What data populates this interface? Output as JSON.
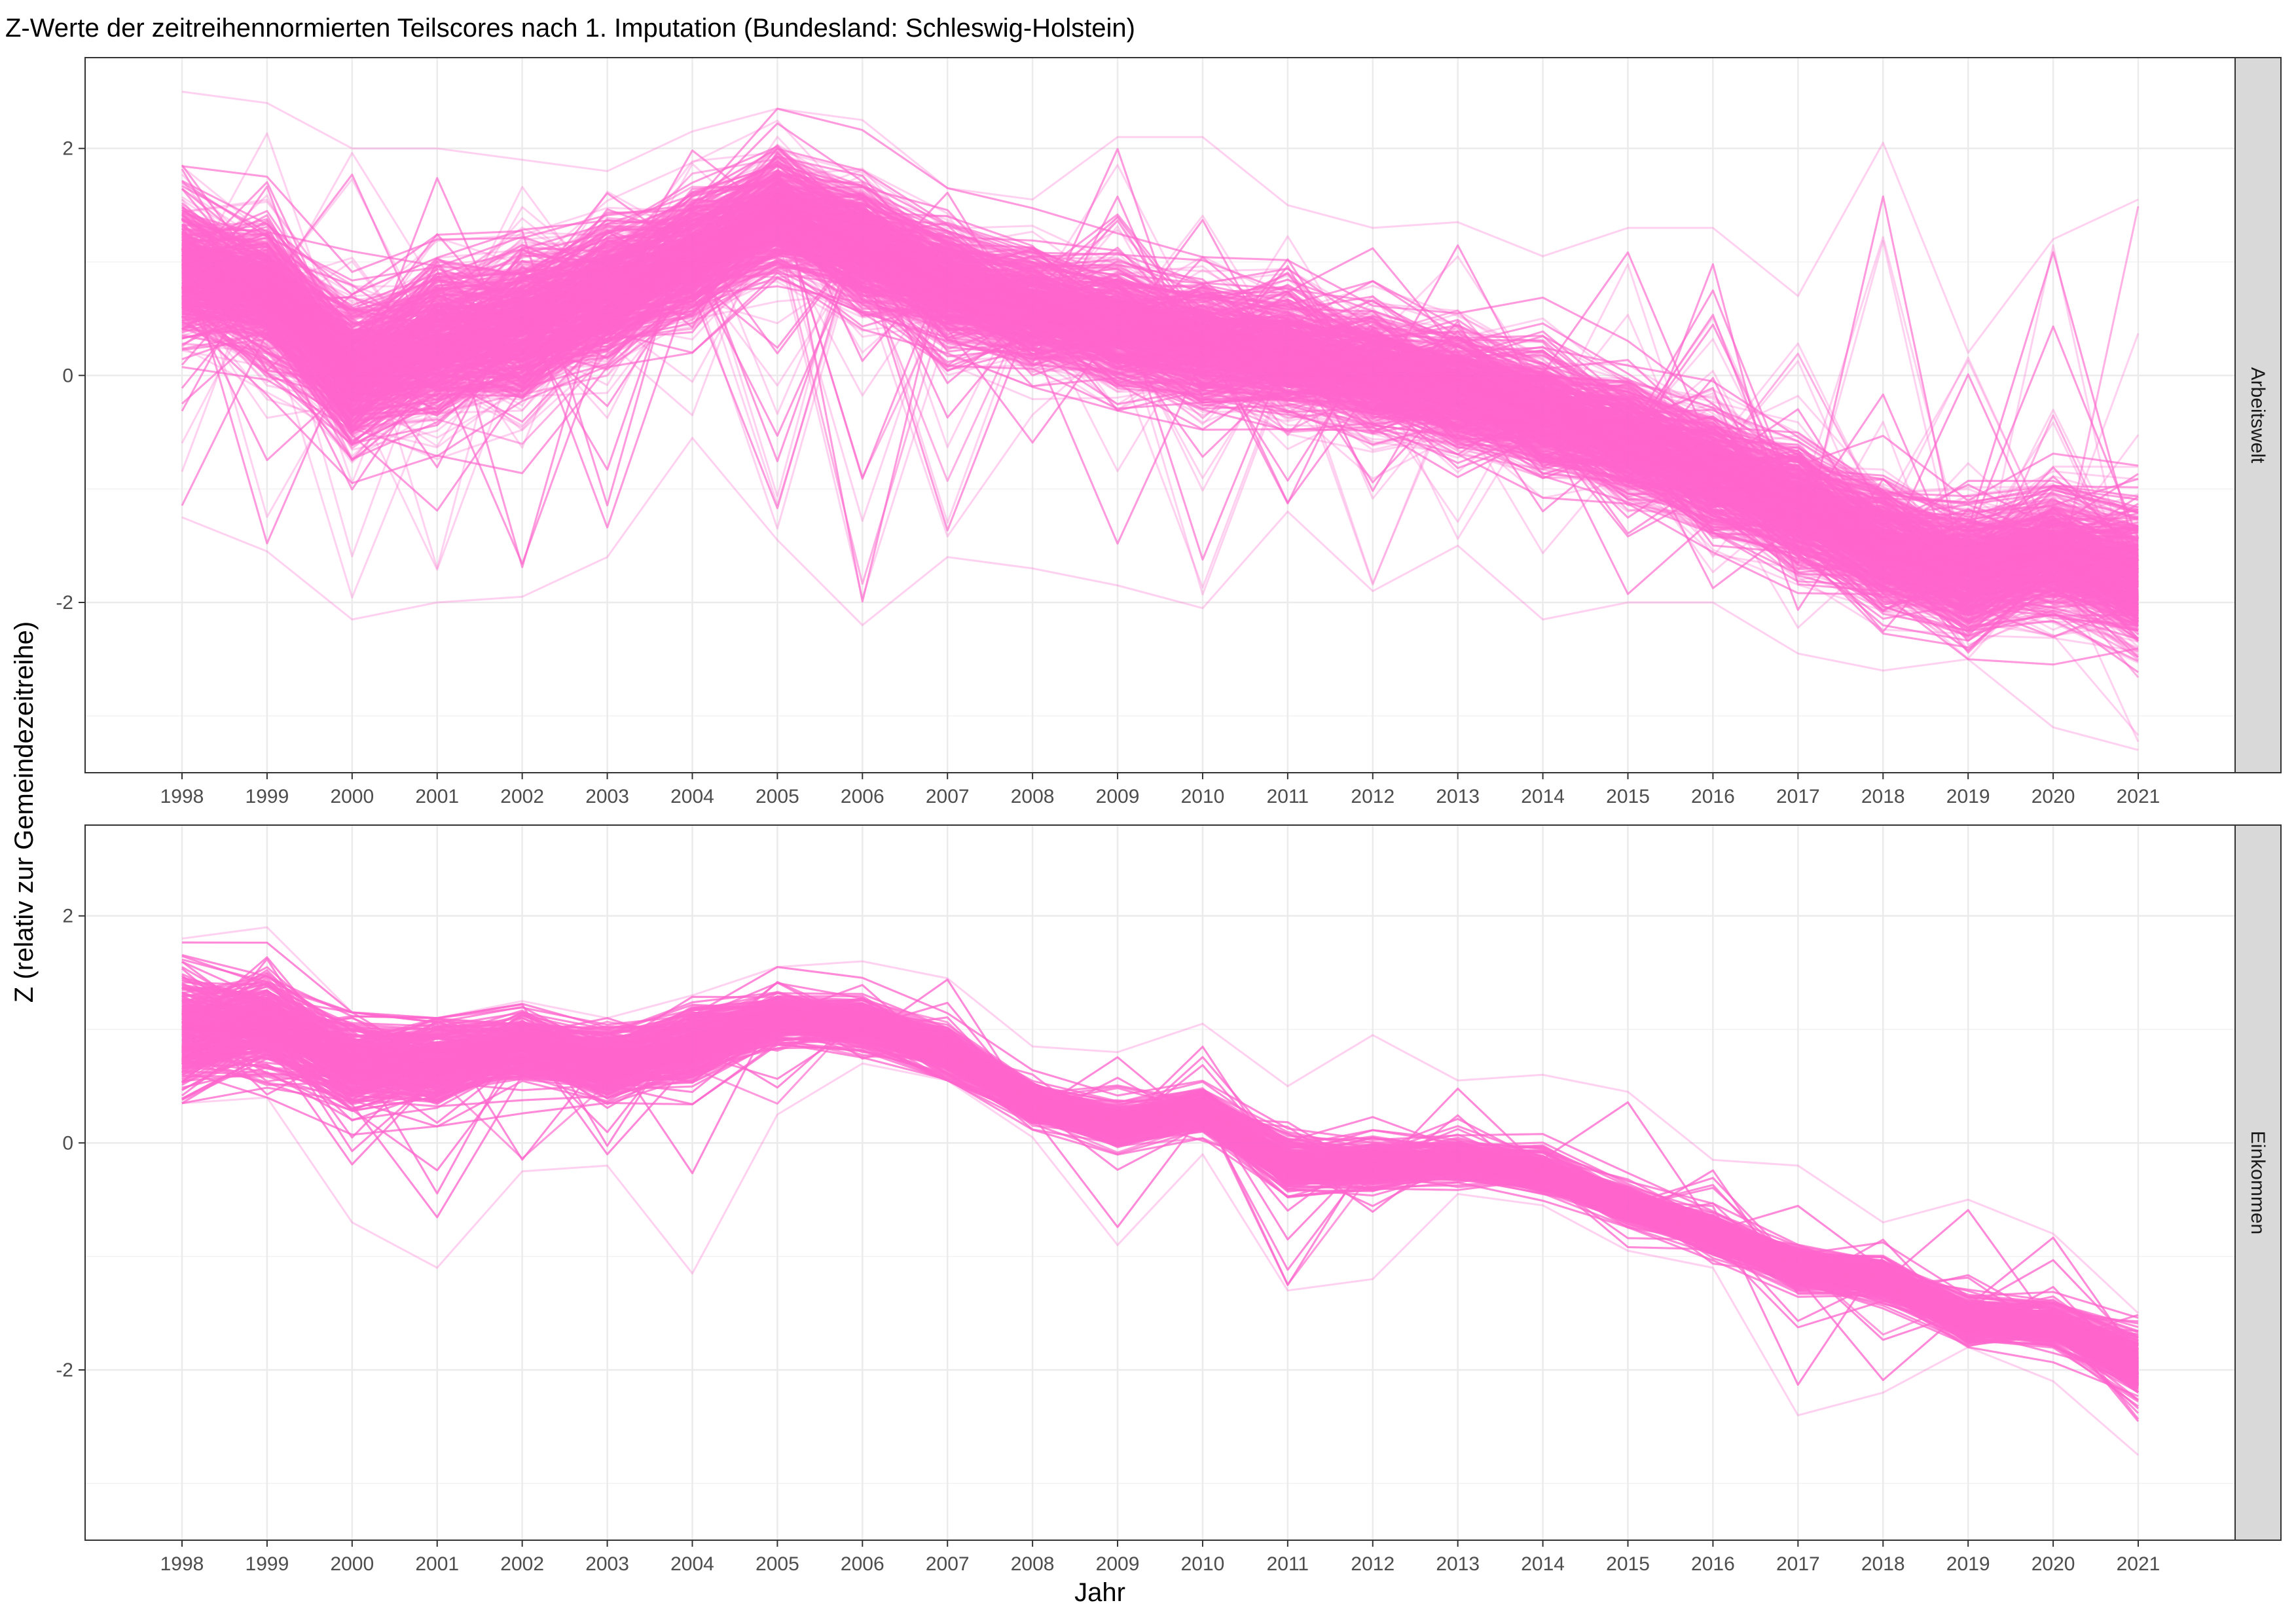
{
  "chart_data": {
    "type": "line",
    "title": "Z-Werte der zeitreihennormierten Teilscores nach 1. Imputation (Bundesland: Schleswig-Holstein)",
    "xlabel": "Jahr",
    "ylabel": "Z (relativ zur Gemeindezeitreihe)",
    "x": [
      1998,
      1999,
      2000,
      2001,
      2002,
      2003,
      2004,
      2005,
      2006,
      2007,
      2008,
      2009,
      2010,
      2011,
      2012,
      2013,
      2014,
      2015,
      2016,
      2017,
      2018,
      2019,
      2020,
      2021
    ],
    "x_tick_labels": [
      "1998",
      "1999",
      "2000",
      "2001",
      "2002",
      "2003",
      "2004",
      "2005",
      "2006",
      "2007",
      "2008",
      "2009",
      "2010",
      "2011",
      "2012",
      "2013",
      "2014",
      "2015",
      "2016",
      "2017",
      "2018",
      "2019",
      "2020",
      "2021"
    ],
    "y_ticks": [
      2,
      0,
      -2
    ],
    "y_tick_labels": [
      "2",
      "0",
      "-2"
    ],
    "ylim": [
      -3.5,
      2.8
    ],
    "grid": true,
    "line_color": "#FF66CC",
    "line_count_approx": 1100,
    "panels": [
      {
        "strip_label": "Arbeitswelt",
        "center_trend": [
          0.95,
          0.75,
          0.05,
          0.3,
          0.45,
          0.75,
          1.05,
          1.45,
          1.15,
          0.8,
          0.6,
          0.45,
          0.3,
          0.2,
          0.05,
          -0.1,
          -0.3,
          -0.55,
          -0.85,
          -1.15,
          -1.5,
          -1.7,
          -1.55,
          -1.75
        ],
        "spread_sd": [
          0.35,
          0.35,
          0.35,
          0.4,
          0.4,
          0.35,
          0.3,
          0.3,
          0.3,
          0.3,
          0.3,
          0.3,
          0.3,
          0.3,
          0.3,
          0.3,
          0.3,
          0.3,
          0.3,
          0.3,
          0.3,
          0.3,
          0.3,
          0.35
        ],
        "range_min": [
          -1.25,
          -1.55,
          -2.15,
          -2.0,
          -1.95,
          -1.6,
          -0.55,
          -1.45,
          -2.2,
          -1.6,
          -1.7,
          -1.85,
          -2.05,
          -1.2,
          -1.9,
          -1.5,
          -2.15,
          -2.0,
          -2.0,
          -2.45,
          -2.6,
          -2.5,
          -3.1,
          -3.3
        ],
        "range_max": [
          2.5,
          2.4,
          2.0,
          2.0,
          1.9,
          1.8,
          2.15,
          2.35,
          2.25,
          1.65,
          1.55,
          2.1,
          2.1,
          1.5,
          1.3,
          1.35,
          1.05,
          1.3,
          1.3,
          0.7,
          2.05,
          0.2,
          1.2,
          1.55
        ]
      },
      {
        "strip_label": "Einkommen",
        "center_trend": [
          1.0,
          1.05,
          0.7,
          0.7,
          0.85,
          0.7,
          0.85,
          1.1,
          1.05,
          0.8,
          0.35,
          0.15,
          0.3,
          -0.2,
          -0.2,
          -0.15,
          -0.25,
          -0.55,
          -0.8,
          -1.1,
          -1.2,
          -1.55,
          -1.6,
          -1.95
        ],
        "spread_sd": [
          0.3,
          0.25,
          0.22,
          0.22,
          0.18,
          0.18,
          0.18,
          0.12,
          0.12,
          0.12,
          0.1,
          0.1,
          0.1,
          0.12,
          0.12,
          0.1,
          0.1,
          0.1,
          0.1,
          0.1,
          0.1,
          0.1,
          0.1,
          0.15
        ],
        "range_min": [
          0.35,
          0.4,
          -0.7,
          -1.1,
          -0.25,
          -0.2,
          -1.15,
          0.25,
          0.7,
          0.55,
          0.05,
          -0.9,
          -0.1,
          -1.3,
          -1.2,
          -0.45,
          -0.55,
          -0.95,
          -1.1,
          -2.4,
          -2.2,
          -1.8,
          -2.1,
          -2.75
        ],
        "range_max": [
          1.8,
          1.9,
          1.15,
          1.1,
          1.25,
          1.1,
          1.3,
          1.55,
          1.6,
          1.45,
          0.85,
          0.8,
          1.05,
          0.5,
          0.95,
          0.55,
          0.6,
          0.45,
          -0.15,
          -0.2,
          -0.7,
          -0.5,
          -0.8,
          -1.5
        ]
      }
    ]
  }
}
